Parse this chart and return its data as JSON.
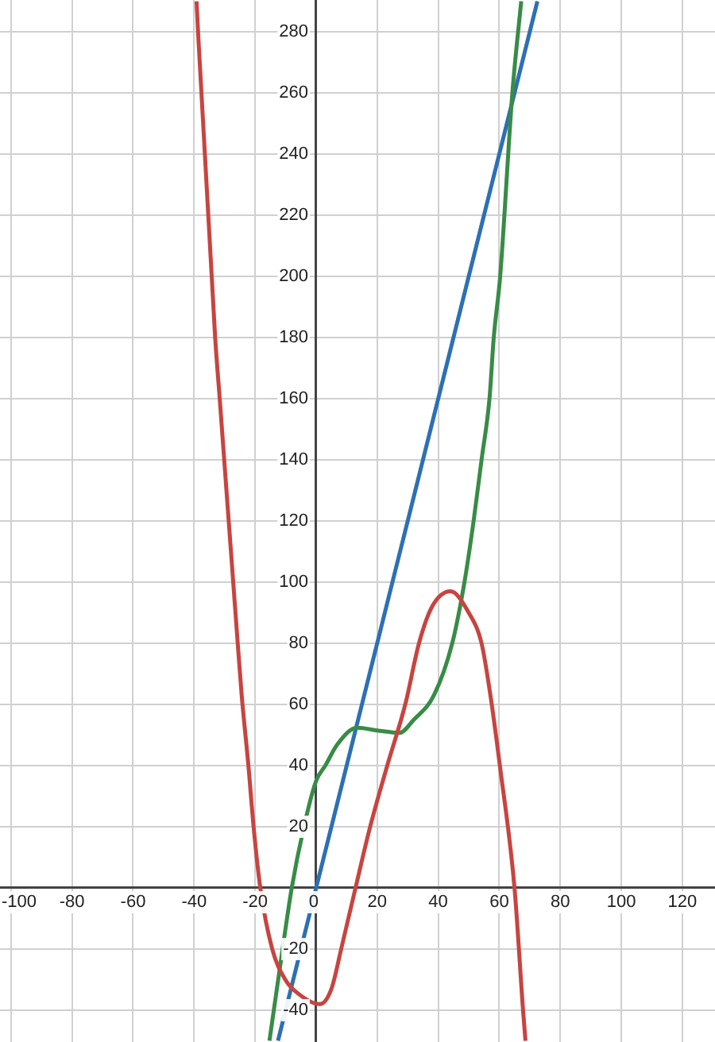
{
  "chart_data": {
    "type": "line",
    "marker": "none",
    "line_style": "solid",
    "grid": true,
    "legend": false,
    "xlim": [
      -103.6,
      130.7
    ],
    "ylim": [
      -50.4,
      290.4
    ],
    "xticks": [
      -100,
      -80,
      -60,
      -40,
      -20,
      0,
      20,
      40,
      60,
      80,
      100,
      120
    ],
    "yticks": [
      -40,
      -20,
      20,
      40,
      60,
      80,
      100,
      120,
      140,
      160,
      180,
      200,
      220,
      240,
      260,
      280
    ],
    "series": [
      {
        "color": "#c74440",
        "x": [
          -39.2,
          -38.7,
          -33.1,
          -31.6,
          -25.7,
          -24.4,
          -22.2,
          -20.5,
          -18.3,
          -14.4,
          -10.1,
          -6.6,
          1.2,
          5,
          8.2,
          12.9,
          17.7,
          23.3,
          29.2,
          33.7,
          38,
          44,
          50,
          54.2,
          57.1,
          60.2,
          65,
          67.8,
          68.6
        ],
        "values": [
          290,
          280,
          180,
          160,
          80,
          63,
          40,
          20,
          0,
          -20,
          -30,
          -34,
          -38,
          -33,
          -20,
          0,
          20,
          40,
          60,
          80,
          92,
          97,
          90,
          80,
          63,
          40,
          0,
          -40,
          -50
        ]
      },
      {
        "color": "#388c46",
        "x": [
          -15.3,
          -11,
          -8,
          -4,
          0,
          3,
          7,
          13.4,
          20,
          27.3,
          32,
          38.6,
          44.6,
          48.6,
          51.6,
          54.2,
          56.8,
          58.2,
          60.3,
          64.3,
          67.2
        ],
        "values": [
          -50,
          -20,
          0,
          20,
          35,
          40,
          47,
          52.4,
          51.5,
          50.7,
          55,
          63,
          80,
          100,
          120,
          140,
          160,
          180,
          200,
          260,
          290
        ]
      },
      {
        "color": "#2d70b3",
        "x": [
          -12.5,
          72.5
        ],
        "values": [
          -50,
          290
        ]
      }
    ]
  }
}
